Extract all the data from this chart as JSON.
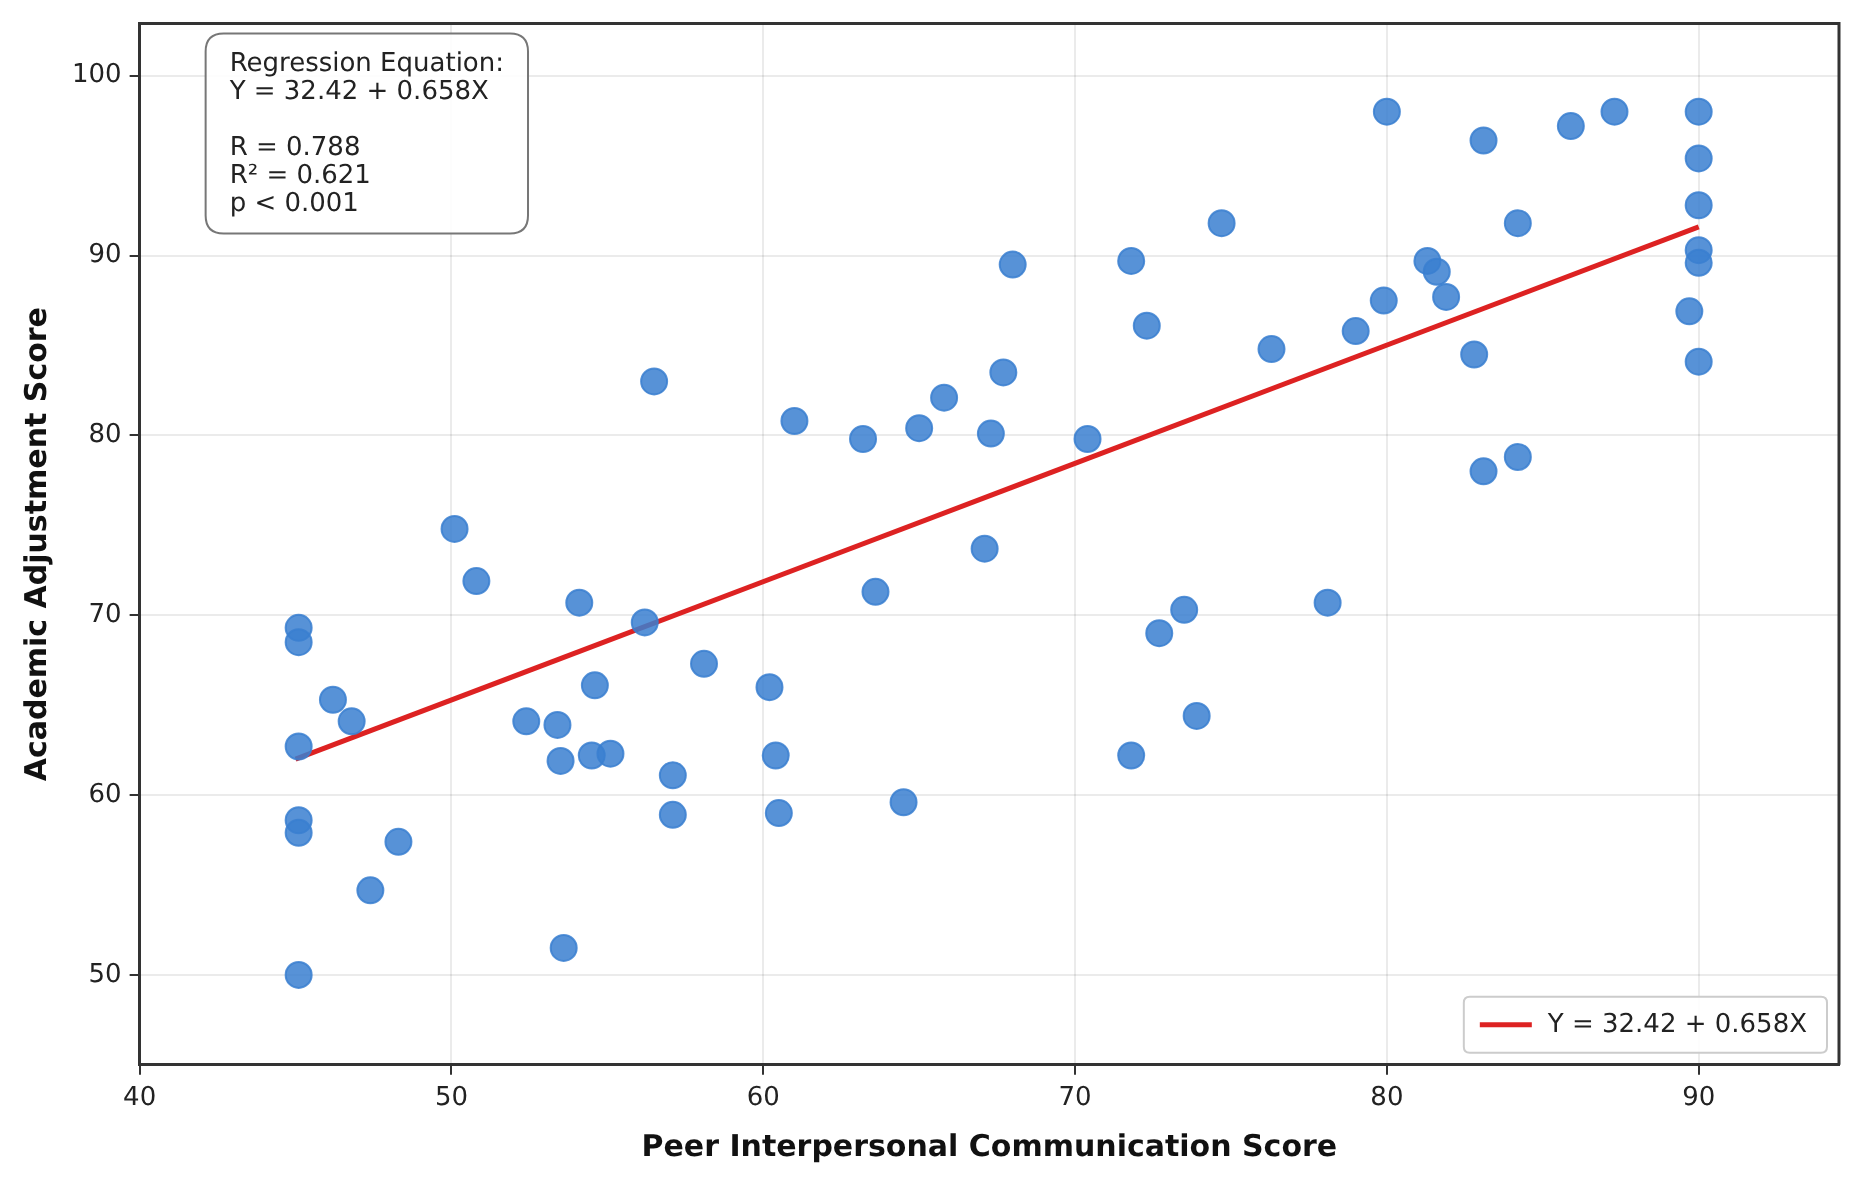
{
  "chart_data": {
    "type": "scatter",
    "xlabel": "Peer Interpersonal Communication Score",
    "ylabel": "Academic Adjustment Score",
    "xlim": [
      40,
      94.5
    ],
    "xticks": [
      40,
      50,
      60,
      70,
      80,
      90
    ],
    "ylim": [
      45,
      102.9
    ],
    "yticks": [
      50,
      60,
      70,
      80,
      90,
      100
    ],
    "grid": true,
    "legend": "bottom right",
    "marker": "circle",
    "annotations": [
      "Regression Equation:\nY = 32.42 + 0.658X\n\nR = 0.788\nR² = 0.621\np < 0.001"
    ],
    "series": [
      {
        "type": "scatter",
        "color": "#3a7fd0",
        "x": [
          56.5,
          50.1,
          50.8,
          45.1,
          45.1,
          46.2,
          46.8,
          45.1,
          45.1,
          45.1,
          48.3,
          47.4,
          45.1,
          54.1,
          56.2,
          58.1,
          54.6,
          52.4,
          53.4,
          53.5,
          54.5,
          55.1,
          57.1,
          57.1,
          53.6,
          61.0,
          63.2,
          65.0,
          65.8,
          67.3,
          67.7,
          70.4,
          72.3,
          76.3,
          67.1,
          63.6,
          60.2,
          60.4,
          60.5,
          64.5,
          72.7,
          73.5,
          73.9,
          71.8,
          80.0,
          83.1,
          85.9,
          87.3,
          90,
          90,
          90,
          90,
          90,
          89.7,
          90,
          84.2,
          81.3,
          81.6,
          81.9,
          79.9,
          79.0,
          82.8,
          83.1,
          84.2,
          78.1,
          74.7,
          71.8,
          68.0
        ],
        "values": [
          83.0,
          74.8,
          71.9,
          69.3,
          68.5,
          65.3,
          64.1,
          62.7,
          58.6,
          57.9,
          57.4,
          54.7,
          50.0,
          70.7,
          69.6,
          67.3,
          66.1,
          64.1,
          63.9,
          61.9,
          62.2,
          62.3,
          61.1,
          58.9,
          51.5,
          80.8,
          79.8,
          80.4,
          82.1,
          80.1,
          83.5,
          79.8,
          86.1,
          84.8,
          73.7,
          71.3,
          66.0,
          62.2,
          59.0,
          59.6,
          69.0,
          70.3,
          64.4,
          62.2,
          98.0,
          96.4,
          97.2,
          98.0,
          98.0,
          95.4,
          92.8,
          90.3,
          89.6,
          86.9,
          84.1,
          91.8,
          89.7,
          89.1,
          87.7,
          87.5,
          85.8,
          84.5,
          78.0,
          78.8,
          70.7,
          91.8,
          89.7,
          89.5
        ]
      },
      {
        "type": "line",
        "name": "Y = 32.42 + 0.658X",
        "color": "#dd2222",
        "line_style": "solid",
        "marker": "none",
        "x": [
          45,
          90
        ],
        "values": [
          62.0,
          91.6
        ]
      }
    ]
  }
}
